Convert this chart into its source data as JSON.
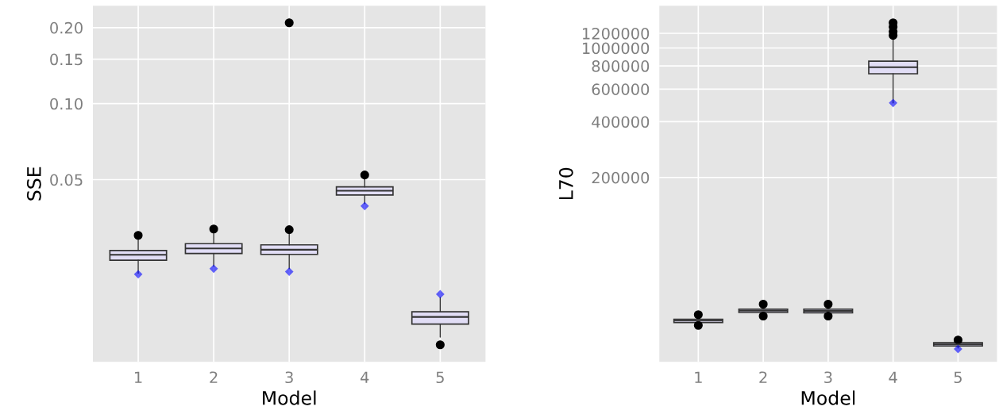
{
  "chart_data": [
    {
      "type": "box",
      "categories": [
        "1",
        "2",
        "3",
        "4",
        "5"
      ],
      "xlabel": "Model",
      "ylabel": "SSE",
      "log": "y",
      "grid": true,
      "ylim": [
        0.0095,
        0.244
      ],
      "yticks": [
        0.05,
        {
          "value": 0.1,
          "label": "0.10"
        },
        0.15,
        {
          "value": 0.2,
          "label": "0.20"
        }
      ],
      "series": [
        {
          "type": "scatter",
          "color": "#0000ff",
          "marker": "diamond",
          "x": [
            "1",
            "2",
            "3",
            "4",
            "5"
          ],
          "values": [
            0.0211,
            0.0222,
            0.0216,
            0.0393,
            0.0176
          ]
        },
        {
          "type": "box",
          "color": "#e1ddf5",
          "boxes": [
            {
              "low": 0.0213,
              "q1": 0.024,
              "median": 0.0252,
              "q3": 0.0262,
              "high": 0.0293,
              "outliers": [
                0.0301
              ]
            },
            {
              "low": 0.0227,
              "q1": 0.0255,
              "median": 0.0267,
              "q3": 0.0279,
              "high": 0.0312,
              "outliers": [
                0.0319
              ]
            },
            {
              "low": 0.0222,
              "q1": 0.0253,
              "median": 0.0264,
              "q3": 0.0276,
              "high": 0.0312,
              "outliers": [
                0.0317,
                0.209
              ]
            },
            {
              "low": 0.0402,
              "q1": 0.0435,
              "median": 0.0452,
              "q3": 0.0468,
              "high": 0.0507,
              "outliers": [
                0.0522
              ]
            },
            {
              "low": 0.0119,
              "q1": 0.0134,
              "median": 0.0143,
              "q3": 0.015,
              "high": 0.0171,
              "outliers": [
                0.0111
              ]
            }
          ]
        }
      ]
    },
    {
      "type": "box",
      "categories": [
        "1",
        "2",
        "3",
        "4",
        "5"
      ],
      "xlabel": "Model",
      "ylabel": "L70",
      "log": "y",
      "grid": true,
      "ylim": [
        20200,
        1690000
      ],
      "yticks": [
        200000,
        400000,
        600000,
        800000,
        1000000,
        1200000
      ],
      "series": [
        {
          "type": "scatter",
          "color": "#0000ff",
          "marker": "diamond",
          "x": [
            "4",
            "5"
          ],
          "values": [
            505000,
            23700
          ]
        },
        {
          "type": "box",
          "color": "#e1ddf5",
          "boxes": [
            {
              "low": 32400,
              "q1": 32900,
              "median": 33700,
              "q3": 34300,
              "high": 35700,
              "outliers": [
                36300,
                31800
              ]
            },
            {
              "low": 36400,
              "q1": 37300,
              "median": 38200,
              "q3": 38900,
              "high": 40100,
              "outliers": [
                41400,
                35700
              ]
            },
            {
              "low": 36400,
              "q1": 37200,
              "median": 38100,
              "q3": 38900,
              "high": 40100,
              "outliers": [
                41400,
                35700
              ]
            },
            {
              "low": 505000,
              "q1": 726000,
              "median": 788000,
              "q3": 849000,
              "high": 1133000,
              "outliers": [
                1368000,
                1300000,
                1226000,
                1170000
              ]
            },
            {
              "low": 24000,
              "q1": 24600,
              "median": 25100,
              "q3": 25600,
              "high": 26000,
              "outliers": [
                26500
              ]
            }
          ]
        }
      ]
    }
  ]
}
